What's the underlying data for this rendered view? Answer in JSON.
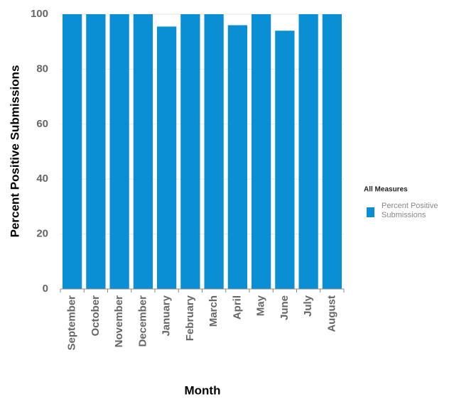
{
  "chart_data": {
    "type": "bar",
    "categories": [
      "September",
      "October",
      "November",
      "December",
      "January",
      "February",
      "March",
      "April",
      "May",
      "June",
      "July",
      "August"
    ],
    "series": [
      {
        "name": "Percent Positive Submissions",
        "color": "#0a8fd4",
        "values": [
          100,
          100,
          100,
          100,
          95.5,
          100,
          100,
          96,
          100,
          94,
          100,
          100
        ]
      }
    ],
    "ylim": [
      0,
      100
    ],
    "yticks": [
      0,
      20,
      40,
      60,
      80,
      100
    ],
    "grid": true,
    "y_label": "Percent Positive Submissions",
    "x_label": "Month",
    "legend_title": "All Measures",
    "legend_position": "right"
  }
}
